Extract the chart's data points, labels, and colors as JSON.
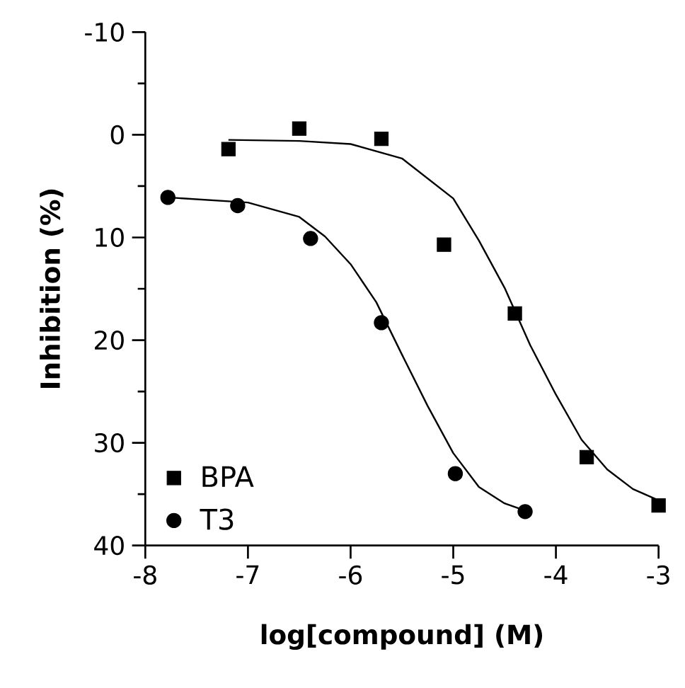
{
  "chart_data": {
    "type": "scatter",
    "xlabel": "log[compound] (M)",
    "ylabel": "Inhibition (%)",
    "xlim": [
      -8,
      -3
    ],
    "xticks": [
      -8,
      -7,
      -6,
      -5,
      -4,
      -3
    ],
    "ylim": [
      40,
      -10
    ],
    "yticks": [
      -10,
      0,
      10,
      20,
      30,
      40
    ],
    "grid": false,
    "legend": "bottom left",
    "series": [
      {
        "name": "BPA",
        "marker": "square",
        "color": "#000000",
        "x": [
          -7.19,
          -6.5,
          -5.7,
          -5.09,
          -4.4,
          -3.7,
          -3.0
        ],
        "values": [
          1.4,
          -0.6,
          0.4,
          10.7,
          17.4,
          31.4,
          36.1
        ]
      },
      {
        "name": "T3",
        "marker": "circle",
        "color": "#000000",
        "x": [
          -7.78,
          -7.1,
          -6.39,
          -5.7,
          -4.98,
          -4.3
        ],
        "values": [
          6.1,
          6.9,
          10.1,
          18.3,
          33.0,
          36.7
        ]
      },
      {
        "type": "line",
        "marker": "none",
        "color": "#000000",
        "x": [
          -7.19,
          -6.5,
          -6.0,
          -5.5,
          -5.0,
          -4.75,
          -4.5,
          -4.25,
          -4.0,
          -3.75,
          -3.5,
          -3.25,
          -3.0
        ],
        "values": [
          0.5,
          0.6,
          0.9,
          2.3,
          6.2,
          10.3,
          14.9,
          20.5,
          25.3,
          29.7,
          32.6,
          34.5,
          35.6
        ]
      },
      {
        "type": "line",
        "marker": "none",
        "color": "#000000",
        "x": [
          -7.78,
          -7.0,
          -6.5,
          -6.25,
          -6.0,
          -5.75,
          -5.5,
          -5.25,
          -5.0,
          -4.75,
          -4.5,
          -4.3
        ],
        "values": [
          6.1,
          6.6,
          8.0,
          9.9,
          12.6,
          16.3,
          21.4,
          26.4,
          31.0,
          34.3,
          35.9,
          36.6
        ]
      }
    ]
  }
}
